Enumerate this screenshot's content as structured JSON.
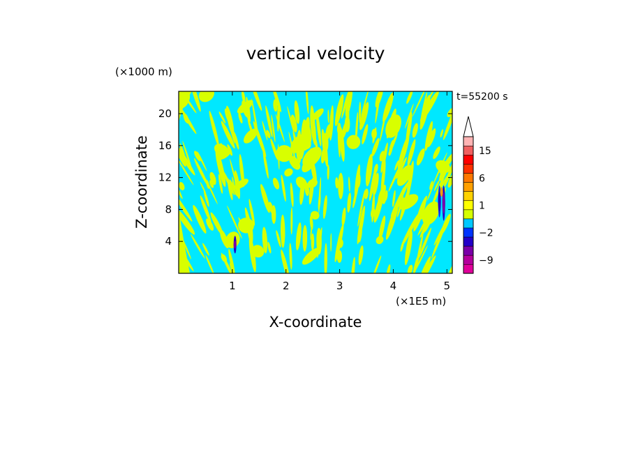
{
  "chart_data": {
    "type": "heatmap",
    "title": "vertical velocity",
    "xlabel": "X-coordinate",
    "ylabel": "Z-coordinate",
    "x_unit": "(×1E5 m)",
    "y_unit": "(×1000 m)",
    "time_label": "t=55200 s",
    "xlim": [
      0,
      5.1
    ],
    "ylim": [
      0,
      22.8
    ],
    "x_ticks": [
      1,
      2,
      3,
      4,
      5
    ],
    "y_ticks": [
      4,
      8,
      12,
      16,
      20
    ],
    "colorbar": {
      "levels": [
        {
          "value": -10,
          "color": "#e0009a"
        },
        {
          "value": -9,
          "color": "#b4009c"
        },
        {
          "value": -6,
          "color": "#7a00a8"
        },
        {
          "value": -3,
          "color": "#2200c8"
        },
        {
          "value": -2,
          "color": "#0034ff"
        },
        {
          "value": -1,
          "color": "#00c8ff"
        },
        {
          "value": 0,
          "color": "#d6ff00"
        },
        {
          "value": 1,
          "color": "#ffff00"
        },
        {
          "value": 2,
          "color": "#ffd200"
        },
        {
          "value": 3,
          "color": "#ffa000"
        },
        {
          "value": 6,
          "color": "#ff7800"
        },
        {
          "value": 9,
          "color": "#ff3000"
        },
        {
          "value": 12,
          "color": "#ff0000"
        },
        {
          "value": 15,
          "color": "#f06060"
        },
        {
          "value": 18,
          "color": "#ffb4b4"
        }
      ],
      "tick_labels": [
        "-9",
        "-2",
        "1",
        "6",
        "15"
      ],
      "background_colors": {
        "downward_weak": "#00e8ff",
        "upward_weak": "#d8ff00"
      }
    }
  }
}
